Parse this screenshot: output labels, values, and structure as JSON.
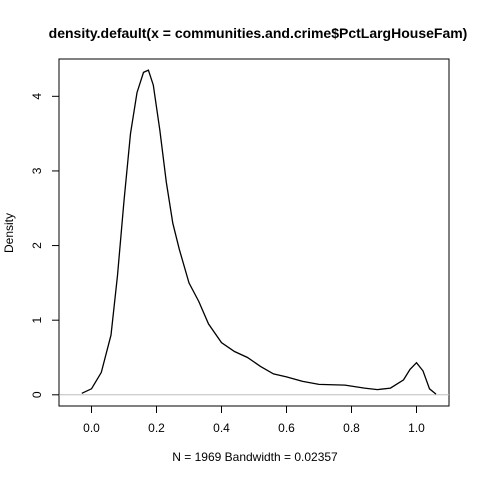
{
  "chart_data": {
    "type": "line",
    "title": "density.default(x = communities.and.crime$PctLargHouseFam)",
    "xlabel": "N = 1969   Bandwidth = 0.02357",
    "ylabel": "Density",
    "xlim": [
      -0.1,
      1.1
    ],
    "ylim": [
      -0.15,
      4.5
    ],
    "x_ticks": [
      0.0,
      0.2,
      0.4,
      0.6,
      0.8,
      1.0
    ],
    "x_tick_labels": [
      "0.0",
      "0.2",
      "0.4",
      "0.6",
      "0.8",
      "1.0"
    ],
    "y_ticks": [
      0,
      1,
      2,
      3,
      4
    ],
    "y_tick_labels": [
      "0",
      "1",
      "2",
      "3",
      "4"
    ],
    "baseline": 0,
    "colors": {
      "line": "#000000",
      "baseline": "#bebebe"
    },
    "series": [
      {
        "x": [
          -0.03,
          0.0,
          0.03,
          0.06,
          0.08,
          0.1,
          0.12,
          0.14,
          0.16,
          0.175,
          0.19,
          0.21,
          0.23,
          0.25,
          0.27,
          0.3,
          0.33,
          0.36,
          0.4,
          0.44,
          0.48,
          0.52,
          0.56,
          0.6,
          0.65,
          0.7,
          0.78,
          0.84,
          0.88,
          0.92,
          0.96,
          0.98,
          1.0,
          1.02,
          1.04,
          1.06
        ],
        "y": [
          0.02,
          0.08,
          0.3,
          0.8,
          1.6,
          2.6,
          3.5,
          4.05,
          4.32,
          4.35,
          4.15,
          3.55,
          2.85,
          2.3,
          1.95,
          1.5,
          1.25,
          0.95,
          0.7,
          0.58,
          0.5,
          0.38,
          0.28,
          0.24,
          0.18,
          0.14,
          0.13,
          0.09,
          0.07,
          0.09,
          0.2,
          0.34,
          0.43,
          0.32,
          0.08,
          0.01
        ]
      }
    ]
  }
}
